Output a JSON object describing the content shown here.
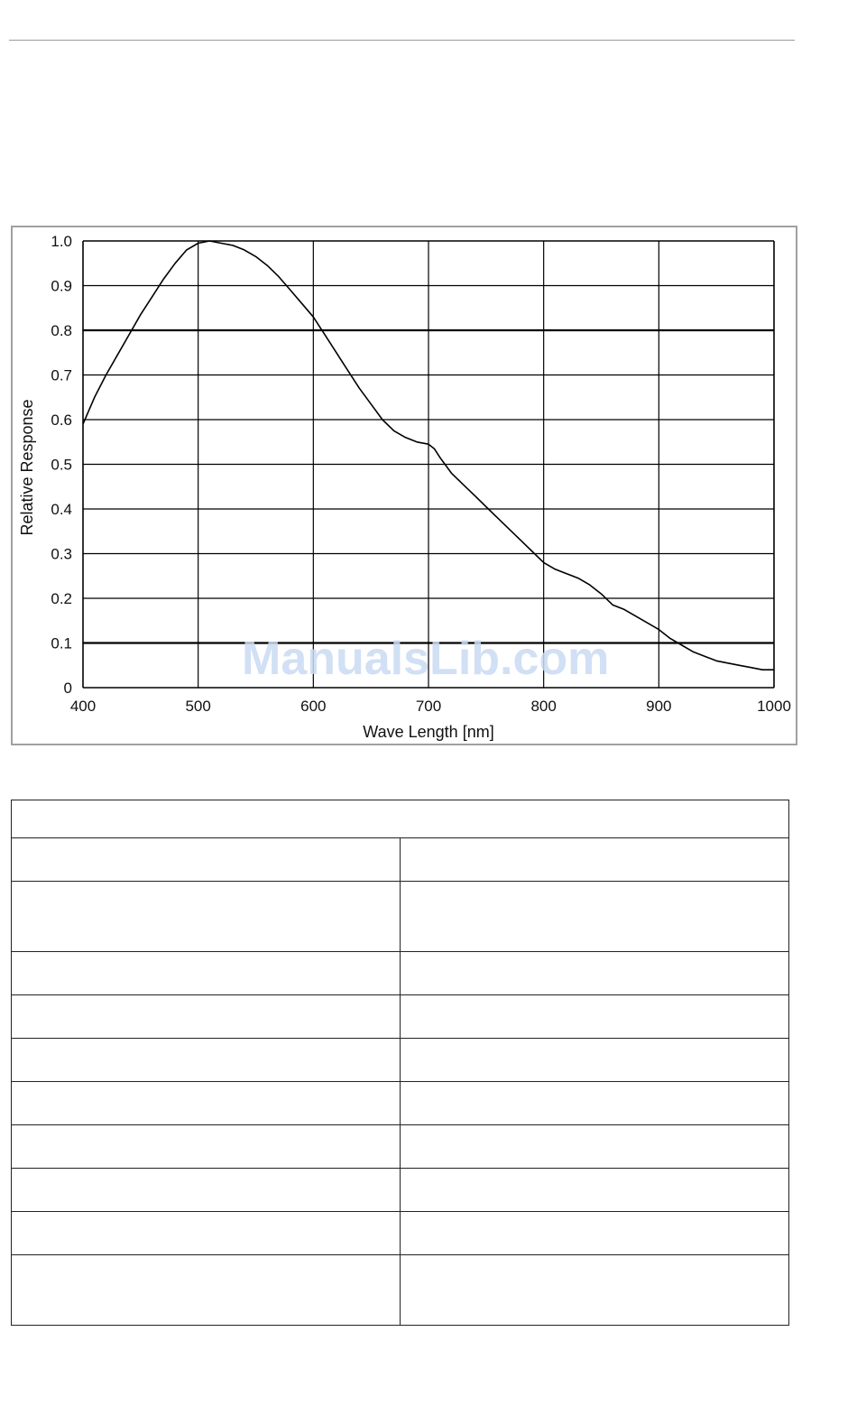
{
  "watermark": "ManualsLib.com",
  "chart_data": {
    "type": "line",
    "title": "",
    "xlabel": "Wave Length [nm]",
    "ylabel": "Relative Response",
    "xlim": [
      400,
      1000
    ],
    "ylim": [
      0,
      1.0
    ],
    "x_ticks": [
      "400",
      "500",
      "600",
      "700",
      "800",
      "900",
      "1000"
    ],
    "y_ticks": [
      "0",
      "0.1",
      "0.2",
      "0.3",
      "0.4",
      "0.5",
      "0.6",
      "0.7",
      "0.8",
      "0.9",
      "1.0"
    ],
    "grid": true,
    "legend": "none",
    "line_color": "#000000",
    "series": [
      {
        "x": [
          400,
          410,
          420,
          430,
          440,
          450,
          460,
          470,
          480,
          490,
          500,
          510,
          520,
          530,
          540,
          550,
          560,
          570,
          580,
          590,
          600,
          610,
          620,
          630,
          640,
          650,
          660,
          670,
          680,
          690,
          700,
          705,
          710,
          720,
          730,
          740,
          750,
          760,
          770,
          780,
          790,
          800,
          810,
          820,
          830,
          840,
          850,
          860,
          870,
          880,
          890,
          900,
          910,
          920,
          930,
          940,
          950,
          960,
          970,
          980,
          990,
          1000
        ],
        "values": [
          0.59,
          0.65,
          0.7,
          0.745,
          0.79,
          0.835,
          0.875,
          0.915,
          0.95,
          0.98,
          0.995,
          1.0,
          0.995,
          0.99,
          0.98,
          0.965,
          0.945,
          0.92,
          0.89,
          0.86,
          0.83,
          0.79,
          0.75,
          0.71,
          0.67,
          0.635,
          0.6,
          0.575,
          0.56,
          0.55,
          0.545,
          0.535,
          0.515,
          0.48,
          0.455,
          0.43,
          0.405,
          0.38,
          0.355,
          0.33,
          0.305,
          0.28,
          0.265,
          0.255,
          0.245,
          0.23,
          0.21,
          0.185,
          0.175,
          0.16,
          0.145,
          0.13,
          0.11,
          0.095,
          0.08,
          0.07,
          0.06,
          0.055,
          0.05,
          0.045,
          0.04,
          0.04
        ]
      }
    ]
  },
  "table": {
    "header": "",
    "rows": [
      {
        "c1": "",
        "c2": "",
        "tall": false
      },
      {
        "c1": "",
        "c2": "",
        "tall": true
      },
      {
        "c1": "",
        "c2": "",
        "tall": false
      },
      {
        "c1": "",
        "c2": "",
        "tall": false
      },
      {
        "c1": "",
        "c2": "",
        "tall": false
      },
      {
        "c1": "",
        "c2": "",
        "tall": false
      },
      {
        "c1": "",
        "c2": "",
        "tall": false
      },
      {
        "c1": "",
        "c2": "",
        "tall": false
      },
      {
        "c1": "",
        "c2": "",
        "tall": false
      },
      {
        "c1": "",
        "c2": "",
        "tall": true
      }
    ]
  }
}
